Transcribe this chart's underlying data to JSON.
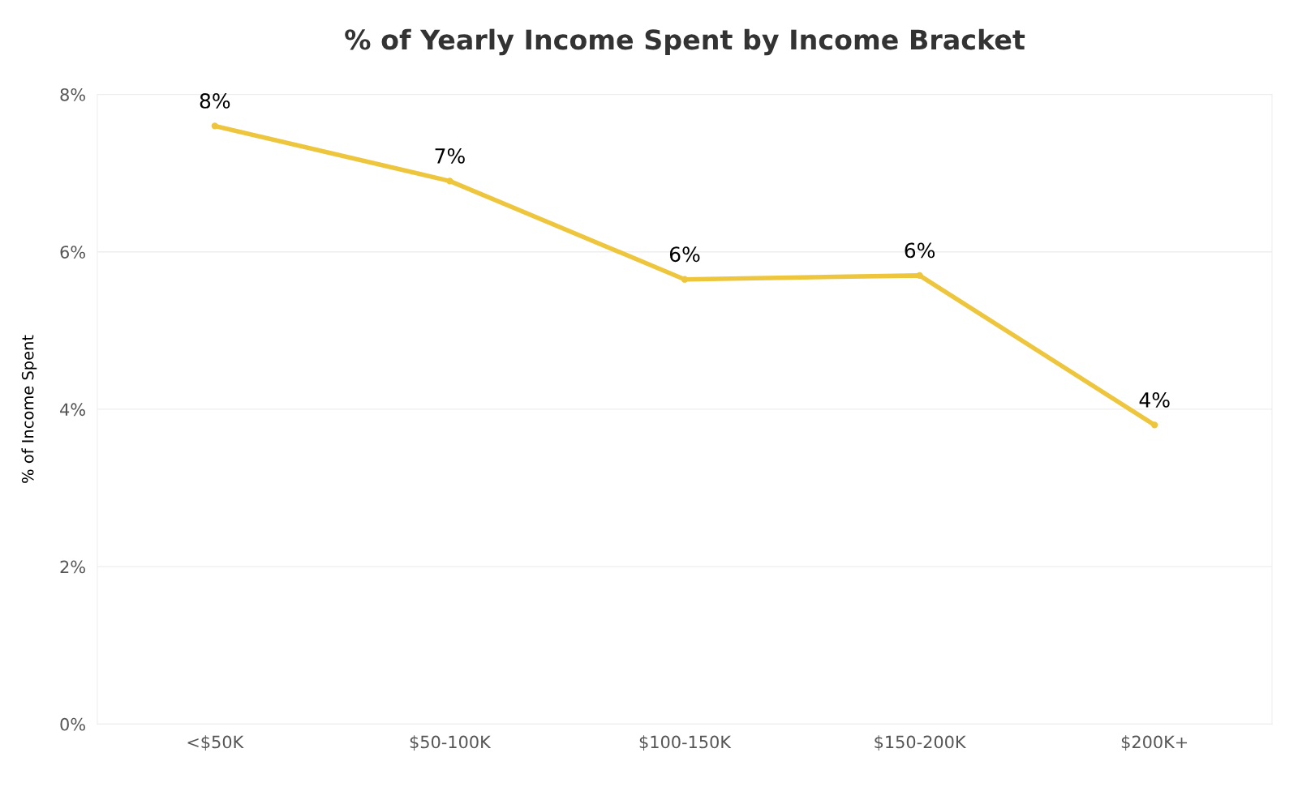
{
  "chart_data": {
    "type": "line",
    "title": "% of Yearly Income Spent by Income Bracket",
    "ylabel": "% of Income Spent",
    "categories": [
      "<$50K",
      "$50-100K",
      "$100-150K",
      "$150-200K",
      "$200K+"
    ],
    "series": [
      {
        "color": "#eec63d",
        "values": [
          7.6,
          6.9,
          5.65,
          5.7,
          3.8
        ],
        "value_labels": [
          "8%",
          "7%",
          "6%",
          "6%",
          "4%"
        ]
      }
    ],
    "ylim": [
      0,
      8
    ],
    "yticks": [
      {
        "value": 0,
        "label": "0%"
      },
      {
        "value": 2,
        "label": "2%"
      },
      {
        "value": 4,
        "label": "4%"
      },
      {
        "value": 6,
        "label": "6%"
      },
      {
        "value": 8,
        "label": "8%"
      }
    ],
    "grid": "y",
    "marker": "circle",
    "legend": false
  }
}
